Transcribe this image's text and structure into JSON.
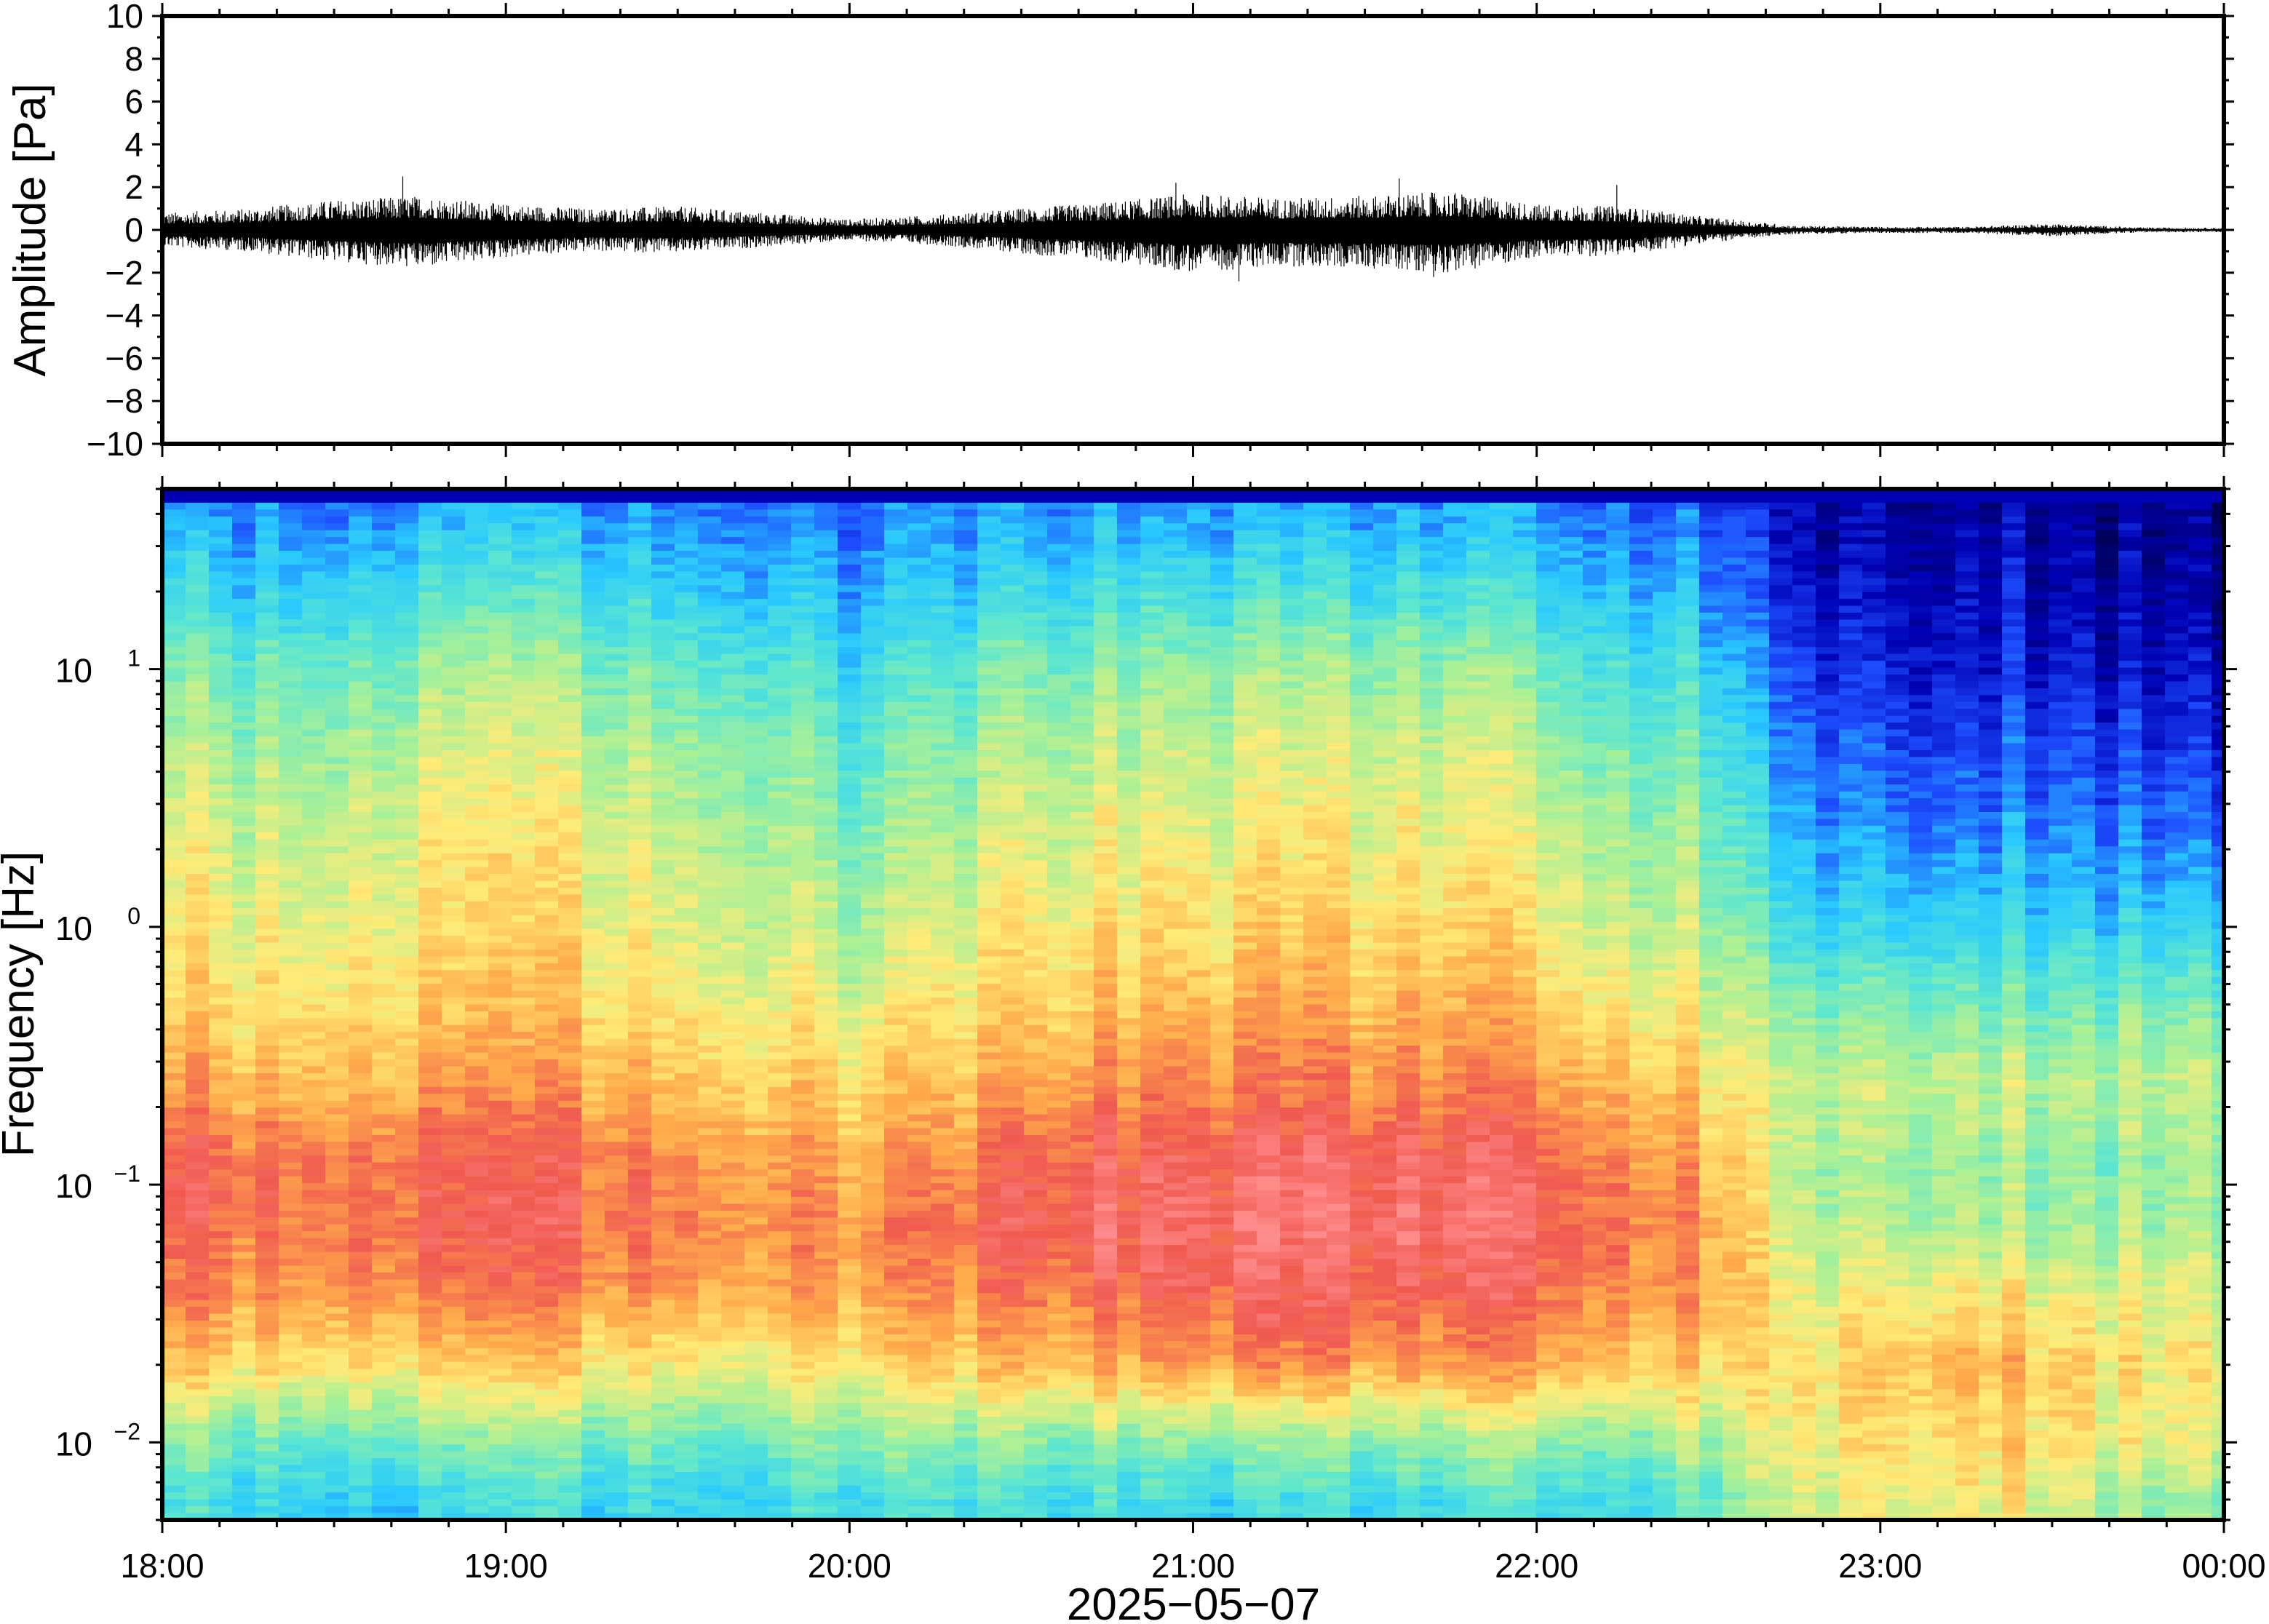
{
  "chart_data": [
    {
      "type": "line",
      "panel": "waveform",
      "title": "",
      "ylabel": "Amplitude [Pa]",
      "ylim": [
        -10,
        10
      ],
      "yticks": [
        -10,
        -8,
        -6,
        -4,
        -2,
        0,
        2,
        4,
        6,
        8,
        10
      ],
      "ytick_labels": [
        "−10",
        "−8",
        "−6",
        "−4",
        "−2",
        "0",
        "2",
        "4",
        "6",
        "8",
        "10"
      ],
      "xlim": [
        "18:00",
        "00:00"
      ],
      "grid": false,
      "envelope": {
        "x": [
          "18:00",
          "18:15",
          "18:30",
          "18:45",
          "19:00",
          "19:15",
          "19:30",
          "19:45",
          "20:00",
          "20:15",
          "20:30",
          "20:45",
          "21:00",
          "21:15",
          "21:30",
          "21:45",
          "22:00",
          "22:15",
          "22:30",
          "22:45",
          "23:00",
          "23:15",
          "23:30",
          "23:45",
          "00:00"
        ],
        "upper": [
          0.8,
          1.0,
          1.4,
          1.6,
          1.2,
          1.0,
          1.1,
          0.8,
          0.5,
          0.7,
          1.0,
          1.3,
          1.7,
          1.5,
          1.6,
          1.8,
          1.2,
          1.1,
          0.6,
          0.2,
          0.15,
          0.15,
          0.3,
          0.12,
          0.1
        ],
        "lower": [
          -0.8,
          -1.0,
          -1.5,
          -1.8,
          -1.3,
          -1.0,
          -1.1,
          -0.8,
          -0.5,
          -0.7,
          -1.1,
          -1.5,
          -2.0,
          -1.7,
          -1.8,
          -2.0,
          -1.3,
          -1.2,
          -0.6,
          -0.2,
          -0.15,
          -0.15,
          -0.3,
          -0.12,
          -0.1
        ],
        "peaks": [
          {
            "x": "18:42",
            "y": 2.5
          },
          {
            "x": "20:57",
            "y": 2.2
          },
          {
            "x": "21:08",
            "y": -2.4
          },
          {
            "x": "21:36",
            "y": 2.4
          },
          {
            "x": "21:42",
            "y": -2.2
          },
          {
            "x": "22:14",
            "y": 2.1
          }
        ]
      }
    },
    {
      "type": "heatmap",
      "panel": "spectrogram",
      "title": "",
      "ylabel": "Frequency [Hz]",
      "xlabel": "2025−05−07",
      "yscale": "log",
      "ylim": [
        0.005,
        50
      ],
      "yticks": [
        0.01,
        0.1,
        1,
        10
      ],
      "ytick_labels": [
        {
          "base": "10",
          "exp": "−2"
        },
        {
          "base": "10",
          "exp": "−1"
        },
        {
          "base": "10",
          "exp": "0"
        },
        {
          "base": "10",
          "exp": "1"
        }
      ],
      "x_tick_labels": [
        "18:00",
        "19:00",
        "20:00",
        "21:00",
        "22:00",
        "23:00",
        "00:00"
      ],
      "colormap": "jet",
      "colors": [
        "#000050",
        "#0000b4",
        "#1e50ff",
        "#28c8ff",
        "#5ae6d2",
        "#aaf096",
        "#ffeb78",
        "#ffaa4b",
        "#f05a50",
        "#ff8c8c"
      ],
      "grid": false,
      "levels": {
        "description_keys": [
          "x",
          "frequencies",
          "values"
        ],
        "x": [
          "18:00",
          "18:15",
          "18:30",
          "18:45",
          "19:00",
          "19:15",
          "19:30",
          "19:45",
          "20:00",
          "20:15",
          "20:30",
          "20:45",
          "21:00",
          "21:15",
          "21:30",
          "21:45",
          "22:00",
          "22:15",
          "22:30",
          "22:45",
          "23:00",
          "23:15",
          "23:30",
          "23:45",
          "00:00"
        ],
        "frequencies": [
          0.006,
          0.01,
          0.02,
          0.04,
          0.07,
          0.12,
          0.25,
          0.5,
          1,
          2,
          5,
          10,
          20,
          40
        ],
        "values": [
          [
            3.6,
            4.4,
            6.4,
            7.4,
            7.8,
            7.9,
            6.9,
            6.3,
            5.9,
            5.6,
            5.0,
            4.4,
            3.4,
            2.6
          ],
          [
            3.6,
            4.4,
            6.4,
            7.4,
            7.8,
            7.9,
            6.9,
            6.3,
            5.9,
            5.6,
            5.0,
            4.4,
            3.4,
            2.6
          ],
          [
            3.6,
            4.5,
            6.5,
            7.6,
            8.0,
            8.0,
            7.1,
            6.5,
            6.1,
            5.8,
            5.2,
            4.6,
            3.6,
            2.7
          ],
          [
            3.4,
            4.5,
            6.4,
            7.6,
            8.0,
            7.9,
            7.1,
            6.5,
            6.2,
            5.9,
            5.4,
            4.8,
            3.8,
            2.8
          ],
          [
            3.5,
            4.4,
            6.3,
            7.5,
            7.9,
            7.8,
            7.0,
            6.4,
            6.1,
            5.9,
            5.4,
            4.8,
            3.8,
            2.8
          ],
          [
            3.5,
            4.4,
            6.2,
            7.4,
            7.8,
            7.7,
            6.9,
            6.4,
            6.0,
            5.7,
            5.2,
            4.6,
            3.6,
            2.7
          ],
          [
            3.6,
            4.4,
            6.1,
            7.3,
            7.7,
            7.6,
            6.8,
            6.2,
            5.8,
            5.5,
            5.0,
            4.4,
            3.4,
            2.6
          ],
          [
            3.6,
            4.4,
            6.0,
            7.1,
            7.5,
            7.3,
            6.6,
            6.0,
            5.6,
            5.3,
            4.8,
            4.2,
            3.2,
            2.5
          ],
          [
            3.6,
            4.5,
            6.1,
            7.0,
            7.3,
            6.9,
            6.3,
            5.6,
            5.0,
            4.6,
            4.0,
            3.4,
            2.8,
            2.2
          ],
          [
            3.7,
            4.6,
            6.3,
            7.2,
            7.5,
            7.1,
            6.5,
            5.9,
            5.4,
            5.0,
            4.4,
            3.8,
            3.0,
            2.4
          ],
          [
            3.6,
            4.6,
            6.6,
            7.6,
            8.0,
            7.8,
            7.0,
            6.3,
            5.9,
            5.5,
            5.0,
            4.4,
            3.4,
            2.6
          ],
          [
            3.6,
            4.6,
            6.8,
            7.9,
            8.3,
            8.1,
            7.3,
            6.6,
            6.1,
            5.7,
            5.2,
            4.6,
            3.6,
            2.7
          ],
          [
            3.6,
            4.7,
            7.2,
            8.2,
            8.5,
            8.3,
            7.5,
            6.8,
            6.3,
            5.9,
            5.4,
            4.8,
            3.8,
            2.8
          ],
          [
            3.6,
            4.7,
            7.3,
            8.3,
            8.6,
            8.4,
            7.6,
            6.9,
            6.4,
            6.0,
            5.5,
            4.9,
            3.8,
            2.8
          ],
          [
            3.7,
            4.8,
            7.2,
            8.2,
            8.6,
            8.4,
            7.5,
            6.9,
            6.4,
            6.0,
            5.5,
            4.9,
            3.8,
            2.8
          ],
          [
            3.7,
            4.8,
            7.1,
            8.1,
            8.5,
            8.3,
            7.4,
            6.8,
            6.3,
            5.9,
            5.4,
            4.8,
            3.7,
            2.7
          ],
          [
            3.8,
            4.8,
            7.0,
            7.9,
            8.2,
            8.0,
            7.2,
            6.5,
            6.0,
            5.6,
            5.0,
            4.4,
            3.4,
            2.6
          ],
          [
            3.8,
            4.8,
            6.8,
            7.6,
            7.9,
            7.6,
            6.9,
            6.2,
            5.6,
            5.2,
            4.6,
            4.0,
            3.2,
            2.5
          ],
          [
            4.2,
            5.0,
            6.4,
            7.0,
            7.2,
            6.9,
            6.2,
            5.6,
            5.0,
            4.6,
            4.0,
            3.4,
            2.6,
            2.0
          ],
          [
            5.6,
            6.0,
            6.2,
            5.8,
            5.4,
            5.2,
            5.5,
            4.6,
            3.6,
            3.0,
            2.4,
            1.9,
            1.4,
            1.1
          ],
          [
            5.8,
            6.2,
            6.6,
            5.8,
            5.2,
            5.0,
            5.4,
            4.5,
            3.4,
            2.7,
            2.0,
            1.5,
            1.1,
            0.9
          ],
          [
            5.9,
            6.3,
            6.8,
            5.9,
            5.1,
            4.9,
            5.3,
            4.4,
            3.3,
            2.5,
            1.8,
            1.3,
            1.0,
            0.8
          ],
          [
            5.8,
            6.3,
            6.7,
            5.8,
            5.0,
            4.8,
            5.3,
            4.4,
            3.5,
            2.8,
            2.1,
            1.6,
            1.2,
            0.9
          ],
          [
            4.8,
            5.6,
            6.0,
            5.5,
            4.9,
            4.7,
            5.2,
            4.3,
            3.2,
            2.4,
            1.6,
            1.1,
            0.8,
            0.6
          ],
          [
            4.6,
            5.4,
            5.8,
            5.3,
            4.8,
            4.6,
            5.1,
            4.2,
            3.1,
            2.2,
            1.4,
            0.9,
            0.6,
            0.4
          ]
        ]
      }
    }
  ]
}
